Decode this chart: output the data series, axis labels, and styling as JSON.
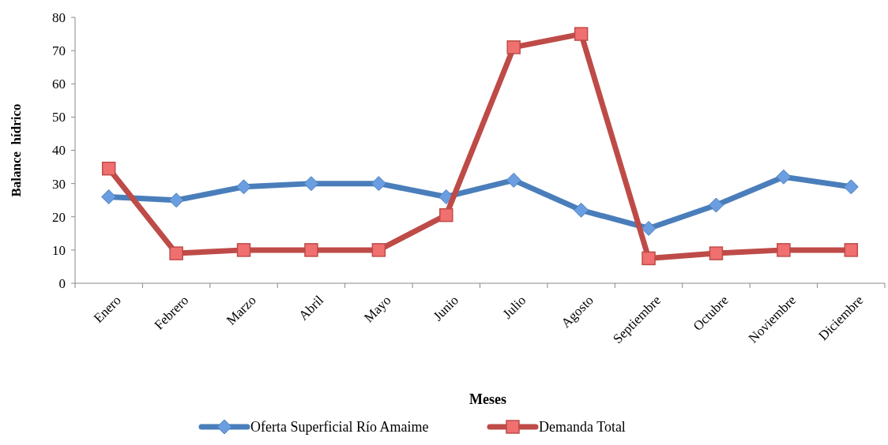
{
  "chart_data": {
    "type": "line",
    "xlabel": "Meses",
    "ylabel": "Balance  hídrico",
    "categories": [
      "Enero",
      "Febrero",
      "Marzo",
      "Abril",
      "Mayo",
      "Junio",
      "Julio",
      "Agosto",
      "Septiembre",
      "Octubre",
      "Noviembre",
      "Diciembre"
    ],
    "series": [
      {
        "name": "Oferta Superficial Río Amaime",
        "color": "#4a7ebb",
        "marker": "diamond",
        "values": [
          26,
          25,
          29,
          30,
          30,
          26,
          31,
          22,
          16.5,
          23.5,
          32,
          29
        ]
      },
      {
        "name": "Demanda Total",
        "color": "#be4b48",
        "marker": "square",
        "values": [
          34.5,
          9,
          10,
          10,
          10,
          20.5,
          71,
          75,
          7.5,
          9,
          10,
          10
        ]
      }
    ],
    "ylim": [
      0,
      80
    ],
    "yticks": [
      0,
      10,
      20,
      30,
      40,
      50,
      60,
      70,
      80
    ],
    "grid": false,
    "legend": "bottom",
    "line_style": "solid"
  }
}
